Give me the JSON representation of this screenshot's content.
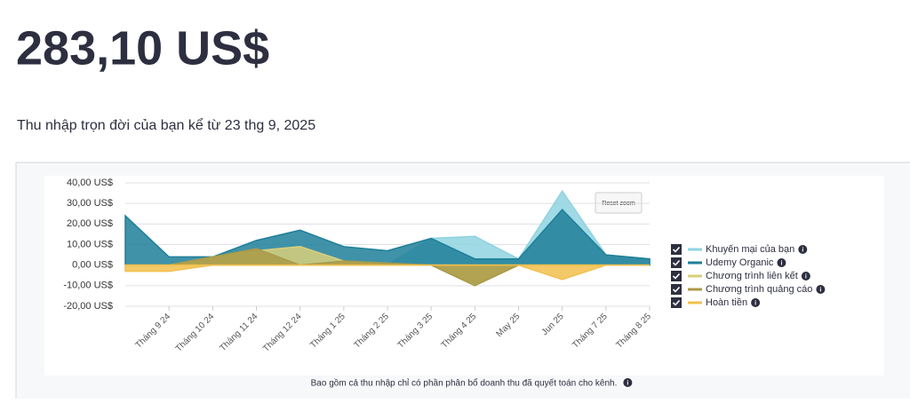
{
  "header": {
    "amount": "283,10 US$",
    "subtitle": "Thu nhập trọn đời của bạn kể từ 23 thg 9, 2025"
  },
  "footnote": "Bao gồm cả thu nhập chỉ có phần phân bổ doanh thu đã quyết toán cho kênh.",
  "chart_data": {
    "type": "area",
    "reset_zoom": "Reset zoom",
    "categories": [
      null,
      "Tháng 9 24",
      "Tháng 10 24",
      "Tháng 11 24",
      "Tháng 12 24",
      "Tháng 1 25",
      "Tháng 2 25",
      "Tháng 3 25",
      "Tháng 4 25",
      "May 25",
      "Jun 25",
      "Tháng 7 25",
      "Tháng 8 25"
    ],
    "ylim": [
      -20,
      40
    ],
    "yticks": [
      {
        "value": -20,
        "label": "-20,00 US$"
      },
      {
        "value": -10,
        "label": "-10,00 US$"
      },
      {
        "value": 0,
        "label": "0,00 US$"
      },
      {
        "value": 10,
        "label": "10,00 US$"
      },
      {
        "value": 20,
        "label": "20,00 US$"
      },
      {
        "value": 30,
        "label": "30,00 US$"
      },
      {
        "value": 40,
        "label": "40,00 US$"
      }
    ],
    "grid": true,
    "series": [
      {
        "name": "Khuyến mại của bạn",
        "color": "#8fd3e0",
        "values": [
          0,
          0,
          0,
          0,
          0,
          0,
          0,
          13,
          14,
          3,
          36,
          5,
          3
        ]
      },
      {
        "name": "Udemy Organic",
        "color": "#1e7f99",
        "values": [
          24,
          4,
          4,
          12,
          17,
          9,
          7,
          13,
          3,
          3,
          27,
          5,
          3
        ]
      },
      {
        "name": "Chương trình liên kết",
        "color": "#d8cf7a",
        "values": [
          0,
          0,
          4,
          7,
          9,
          2,
          0,
          0,
          -9,
          0,
          0,
          0,
          0
        ]
      },
      {
        "name": "Chương trình quảng cáo",
        "color": "#a99a48",
        "values": [
          0,
          0,
          4,
          8,
          0,
          2,
          1,
          0,
          -10,
          0,
          0,
          0,
          0
        ]
      },
      {
        "name": "Hoàn tiền",
        "color": "#f2c04e",
        "values": [
          -3,
          -3,
          0,
          0,
          0,
          0,
          0,
          0,
          0,
          0,
          -7,
          0,
          0
        ]
      }
    ]
  }
}
